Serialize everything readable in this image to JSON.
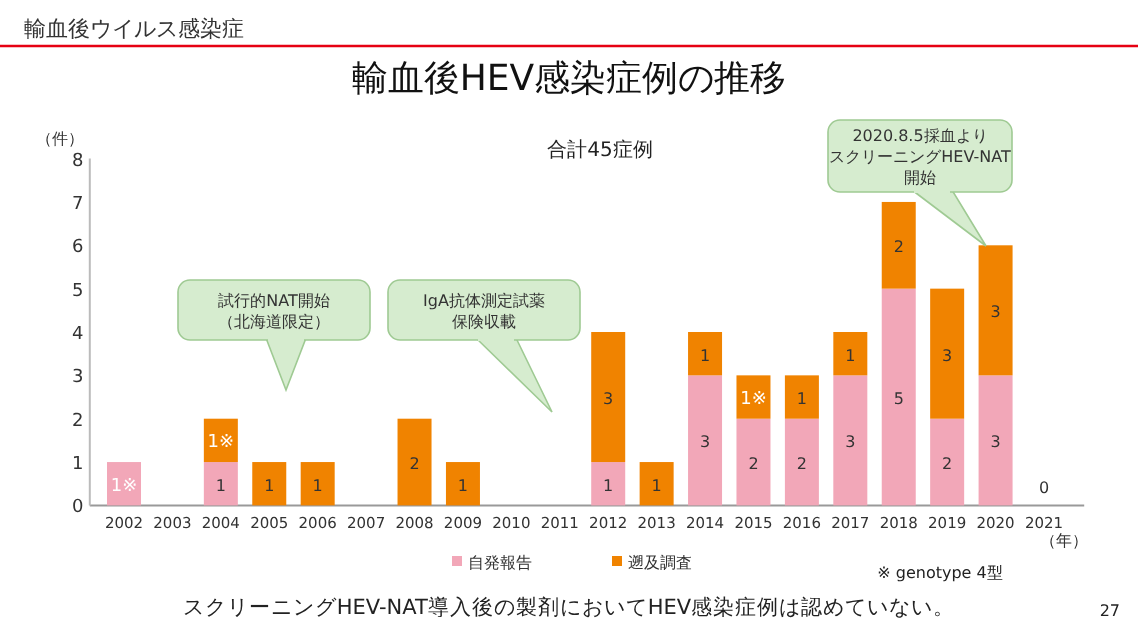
{
  "chart_data": {
    "type": "bar",
    "stacked": true,
    "title": "輸血後HEV感染症例の推移",
    "subtitle": "輸血後ウイルス感染症",
    "ylabel": "（件）",
    "xlabel": "（年）",
    "categories": [
      "2002",
      "2003",
      "2004",
      "2005",
      "2006",
      "2007",
      "2008",
      "2009",
      "2010",
      "2011",
      "2012",
      "2013",
      "2014",
      "2015",
      "2016",
      "2017",
      "2018",
      "2019",
      "2020",
      "2021"
    ],
    "series": [
      {
        "name": "自発報告",
        "color": "#f2a7b8",
        "values": [
          1,
          0,
          1,
          0,
          0,
          0,
          0,
          0,
          0,
          0,
          1,
          0,
          3,
          2,
          2,
          3,
          5,
          2,
          3,
          0
        ],
        "value_labels": [
          "1※",
          null,
          "1",
          null,
          null,
          null,
          null,
          null,
          null,
          null,
          "1",
          null,
          "3",
          "2",
          "2",
          "3",
          "5",
          "2",
          "3",
          "0"
        ]
      },
      {
        "name": "遡及調査",
        "color": "#f08300",
        "values": [
          0,
          0,
          1,
          1,
          1,
          0,
          2,
          1,
          0,
          0,
          3,
          1,
          1,
          1,
          1,
          1,
          2,
          3,
          3,
          0
        ],
        "value_labels": [
          null,
          null,
          "1※",
          "1",
          "1",
          null,
          "2",
          "1",
          null,
          null,
          "3",
          "1",
          "1",
          "1※",
          "1",
          "1",
          "2",
          "3",
          "3",
          null
        ]
      }
    ],
    "ylim": [
      0,
      8
    ],
    "yticks": [
      0,
      1,
      2,
      3,
      4,
      5,
      6,
      7,
      8
    ],
    "grid": false,
    "legend": "bottom",
    "annotations": [
      "試行的NAT開始（北海道限定）",
      "IgA抗体測定試薬保険収載",
      "2020.8.5採血よりスクリーニングHEV-NAT開始",
      "合計45症例",
      "※ genotype 4型",
      "スクリーニングHEV-NAT導入後の製剤においてHEV感染症例は認めていない。",
      "27"
    ]
  }
}
